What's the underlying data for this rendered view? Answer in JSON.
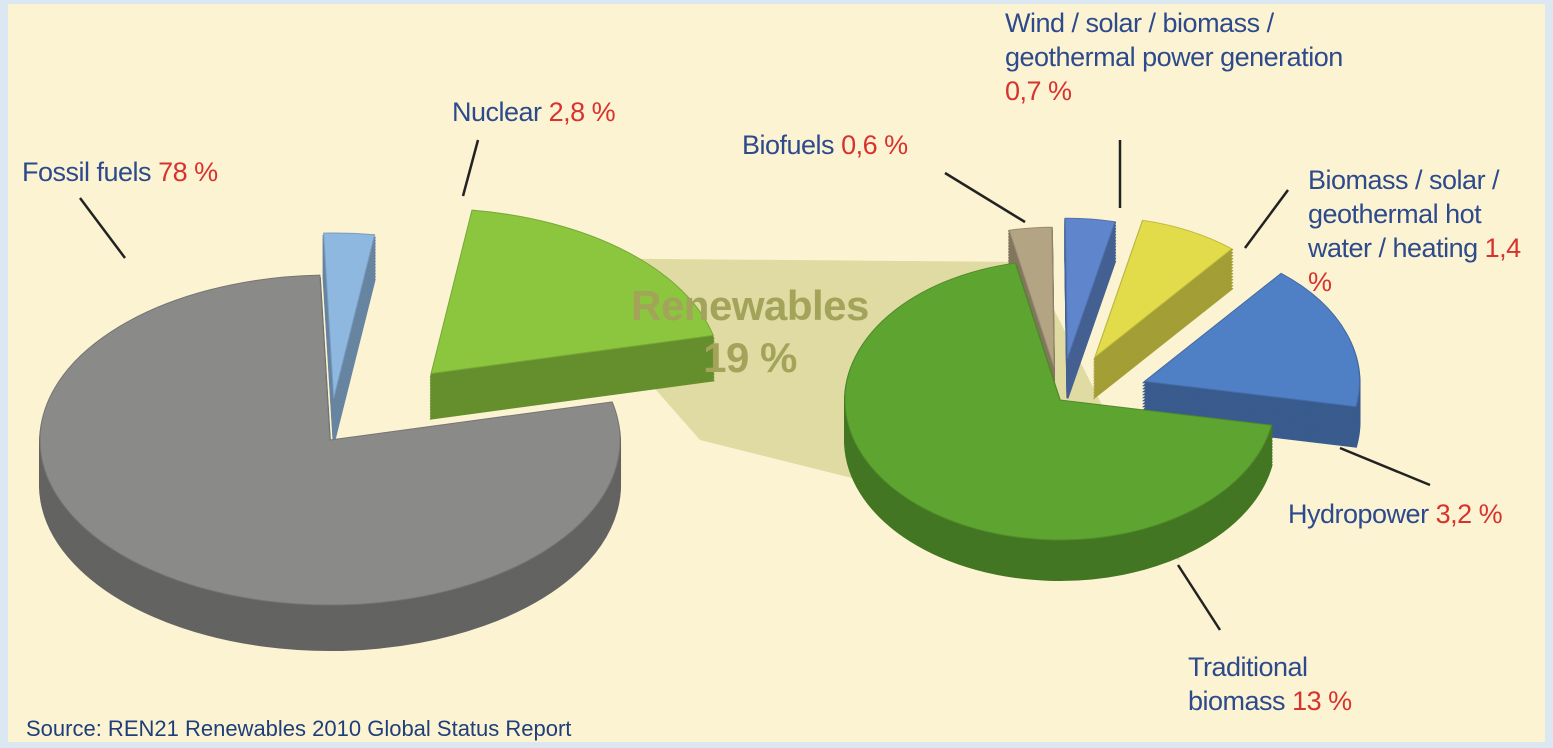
{
  "source": "Source: REN21 Renewables 2010 Global Status Report",
  "chart_data": [
    {
      "type": "pie",
      "categories": [
        "Nuclear",
        "Renewables",
        "Fossil fuels"
      ],
      "values": [
        2.8,
        19,
        78
      ],
      "value_labels": [
        "2,8 %",
        "19 %",
        "78 %"
      ],
      "colors": [
        "#8fb8e0",
        "#8cc63f",
        "#8a8a88"
      ]
    },
    {
      "type": "pie",
      "categories": [
        "Biofuels",
        "Wind / solar / biomass / geothermal power generation",
        "Biomass / solar / geothermal hot water / heating",
        "Hydropower",
        "Traditional biomass"
      ],
      "values": [
        0.6,
        0.7,
        1.4,
        3.2,
        13
      ],
      "value_labels": [
        "0,6 %",
        "0,7 %",
        "1,4 %",
        "3,2 %",
        "13 %"
      ],
      "colors": [
        "#b3a583",
        "#5f86cc",
        "#e2dc4a",
        "#4f7fc4",
        "#5da431"
      ]
    }
  ]
}
